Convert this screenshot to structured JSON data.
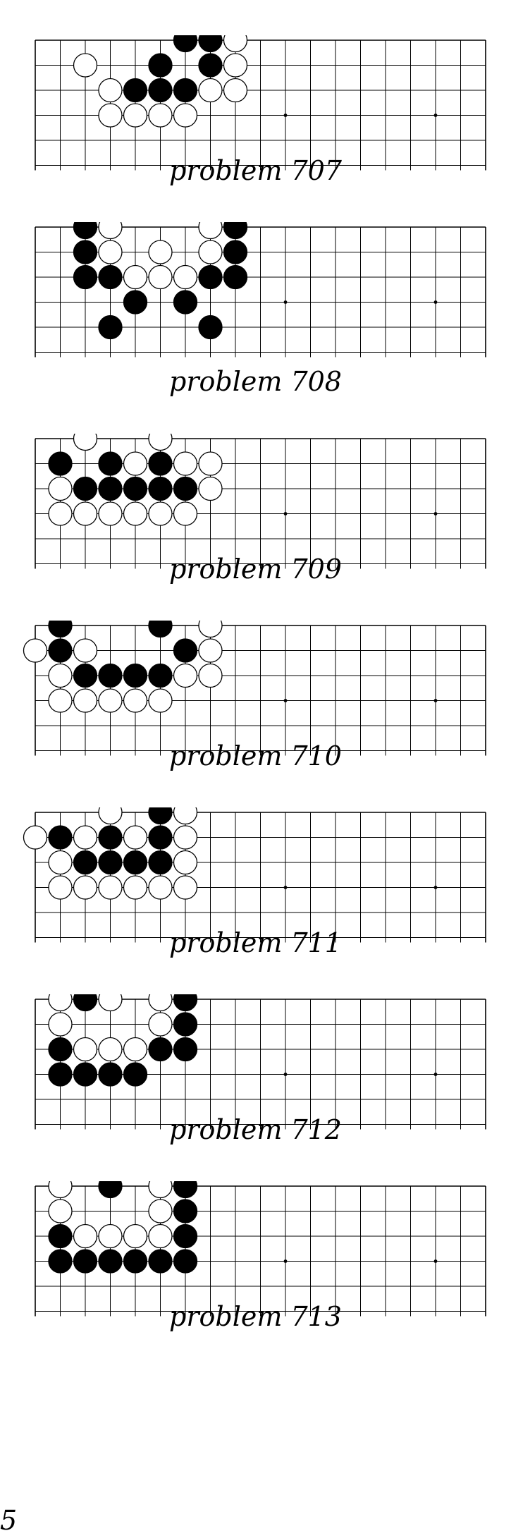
{
  "colors": {
    "black_stone": "#000000",
    "white_stone": "#ffffff",
    "grid_line": "#000000",
    "background": "#ffffff"
  },
  "board": {
    "columns": 19,
    "visible_rows": 5,
    "star_points": [
      "k4",
      "q4"
    ]
  },
  "problems": [
    {
      "caption": "problem 707",
      "black": [
        "g1",
        "h1",
        "f2",
        "h2",
        "e3",
        "f3",
        "g3"
      ],
      "white": [
        "i1",
        "c2",
        "i2",
        "d3",
        "h3",
        "i3",
        "d4",
        "e4",
        "f4",
        "g4"
      ]
    },
    {
      "caption": "problem 708",
      "black": [
        "c1",
        "i1",
        "c2",
        "i2",
        "c3",
        "d3",
        "h3",
        "i3",
        "e4",
        "g4",
        "d5",
        "h5"
      ],
      "white": [
        "d1",
        "h1",
        "d2",
        "f2",
        "h2",
        "e3",
        "f3",
        "g3"
      ]
    },
    {
      "caption": "problem 709",
      "black": [
        "b2",
        "d2",
        "f2",
        "c3",
        "d3",
        "e3",
        "f3",
        "g3"
      ],
      "white": [
        "c1",
        "f1",
        "e2",
        "g2",
        "h2",
        "b3",
        "h3",
        "b4",
        "c4",
        "d4",
        "e4",
        "f4",
        "g4"
      ]
    },
    {
      "caption": "problem 710",
      "black": [
        "b1",
        "f1",
        "b2",
        "g2",
        "c3",
        "d3",
        "e3",
        "f3"
      ],
      "white": [
        "h1",
        "a2",
        "c2",
        "h2",
        "b3",
        "g3",
        "h3",
        "b4",
        "c4",
        "d4",
        "e4",
        "f4"
      ]
    },
    {
      "caption": "problem 711",
      "black": [
        "f1",
        "b2",
        "d2",
        "f2",
        "c3",
        "d3",
        "e3",
        "f3"
      ],
      "white": [
        "d1",
        "g1",
        "a2",
        "c2",
        "e2",
        "g2",
        "b3",
        "g3",
        "b4",
        "c4",
        "d4",
        "e4",
        "f4",
        "g4"
      ]
    },
    {
      "caption": "problem 712",
      "black": [
        "c1",
        "g1",
        "g2",
        "b3",
        "f3",
        "g3",
        "b4",
        "c4",
        "d4",
        "e4"
      ],
      "white": [
        "b1",
        "d1",
        "f1",
        "b2",
        "f2",
        "c3",
        "d3",
        "e3"
      ]
    },
    {
      "caption": "problem 713",
      "black": [
        "d1",
        "g1",
        "g2",
        "b3",
        "g3",
        "b4",
        "c4",
        "d4",
        "e4",
        "f4",
        "g4"
      ],
      "white": [
        "b1",
        "f1",
        "b2",
        "f2",
        "c3",
        "d3",
        "e3",
        "f3"
      ]
    }
  ],
  "page_number": "5"
}
